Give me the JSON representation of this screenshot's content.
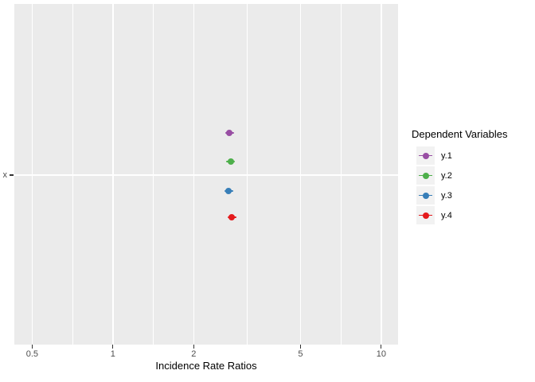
{
  "figure": {
    "background": "#FFFFFF",
    "panel_background": "#EBEBEB",
    "gridline_color": "#FFFFFF",
    "tick_mark_color": "#333333",
    "tick_label_color": "#4D4D4D",
    "text_color": "#000000",
    "legend_key_background": "#F2F2F2"
  },
  "chart_data": {
    "type": "scatter",
    "title": "",
    "xlabel": "Incidence Rate Ratios",
    "ylabel": "",
    "x_scale": "log10",
    "x_domain": [
      0.429,
      11.55
    ],
    "x_major_ticks": [
      0.5,
      1,
      2,
      5,
      10
    ],
    "x_major_tick_labels": [
      "0.5",
      "1",
      "2",
      "5",
      "10"
    ],
    "x_minor_ticks": [
      0.7071,
      1.4142,
      3.1623,
      7.0711
    ],
    "grid": true,
    "y_categories": [
      {
        "label": "x",
        "y_frac": 0.5023
      }
    ],
    "legend": {
      "title": "Dependent Variables",
      "position": "right"
    },
    "series": [
      {
        "name": "y.1",
        "color": "#984EA3",
        "category": "x",
        "value": 2.72,
        "y_frac": 0.378
      },
      {
        "name": "y.2",
        "color": "#4DAF4A",
        "category": "x",
        "value": 2.75,
        "y_frac": 0.462
      },
      {
        "name": "y.3",
        "color": "#377EB8",
        "category": "x",
        "value": 2.7,
        "y_frac": 0.548
      },
      {
        "name": "y.4",
        "color": "#E41A1C",
        "category": "x",
        "value": 2.77,
        "y_frac": 0.627
      }
    ]
  }
}
